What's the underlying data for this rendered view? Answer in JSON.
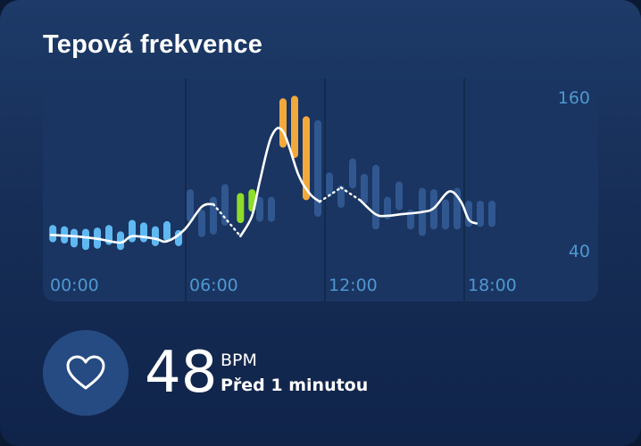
{
  "card": {
    "title": "Tepová frekvence"
  },
  "current": {
    "value": "48",
    "unit": "BPM",
    "time": "Před 1 minutou",
    "icon": "heart-icon"
  },
  "colors": {
    "low": "#5fb8f2",
    "normal": "#30578f",
    "elevated": "#8fdc2b",
    "high": "#f2a93c",
    "line": "#ffffff",
    "axis_text": "#4f97d1"
  },
  "chart_data": {
    "type": "line",
    "title": "",
    "xlabel": "",
    "ylabel": "",
    "x_ticks": [
      "00:00",
      "06:00",
      "12:00",
      "18:00"
    ],
    "y_ticks": [
      "160",
      "40"
    ],
    "ylim": [
      40,
      160
    ],
    "xlim": [
      "00:00",
      "24:00"
    ],
    "grid": "vertical",
    "series": [
      {
        "points": [
          {
            "t": "00:00",
            "v": 53
          },
          {
            "t": "01:00",
            "v": 52
          },
          {
            "t": "02:00",
            "v": 50
          },
          {
            "t": "03:00",
            "v": 47
          },
          {
            "t": "03:30",
            "v": 52
          },
          {
            "t": "04:30",
            "v": 50
          },
          {
            "t": "05:00",
            "v": 48
          },
          {
            "t": "05:45",
            "v": 57
          },
          {
            "t": "06:30",
            "v": 75
          },
          {
            "t": "07:00",
            "v": 77
          }
        ]
      },
      {
        "points": [
          {
            "t": "08:10",
            "v": 52
          },
          {
            "t": "08:40",
            "v": 68
          },
          {
            "t": "09:00",
            "v": 95
          },
          {
            "t": "09:30",
            "v": 130
          },
          {
            "t": "10:00",
            "v": 134
          },
          {
            "t": "10:40",
            "v": 100
          },
          {
            "t": "11:10",
            "v": 85
          },
          {
            "t": "11:35",
            "v": 79
          }
        ]
      },
      {
        "points": [
          {
            "t": "13:20",
            "v": 80
          },
          {
            "t": "14:00",
            "v": 69
          },
          {
            "t": "14:30",
            "v": 68
          },
          {
            "t": "15:00",
            "v": 69
          },
          {
            "t": "16:00",
            "v": 71
          },
          {
            "t": "16:30",
            "v": 74
          },
          {
            "t": "17:10",
            "v": 87
          },
          {
            "t": "17:40",
            "v": 79
          },
          {
            "t": "18:00",
            "v": 65
          },
          {
            "t": "18:20",
            "v": 62
          }
        ]
      }
    ],
    "gaps": [
      {
        "from": "07:00",
        "to": "08:10"
      },
      {
        "from": "11:35",
        "to": "12:30"
      },
      {
        "from": "12:30",
        "to": "13:20"
      }
    ],
    "gap_peak": {
      "t": "12:30",
      "v": 90
    },
    "ranges": [
      {
        "zone": "low",
        "t": "00:05",
        "min": 50,
        "max": 58
      },
      {
        "zone": "low",
        "t": "00:35",
        "min": 49,
        "max": 57
      },
      {
        "zone": "low",
        "t": "01:00",
        "min": 46,
        "max": 55
      },
      {
        "zone": "low",
        "t": "01:30",
        "min": 44,
        "max": 55
      },
      {
        "zone": "low",
        "t": "02:00",
        "min": 45,
        "max": 56
      },
      {
        "zone": "low",
        "t": "02:30",
        "min": 48,
        "max": 58
      },
      {
        "zone": "low",
        "t": "03:00",
        "min": 44,
        "max": 53
      },
      {
        "zone": "low",
        "t": "03:30",
        "min": 50,
        "max": 62
      },
      {
        "zone": "low",
        "t": "04:00",
        "min": 50,
        "max": 60
      },
      {
        "zone": "low",
        "t": "04:30",
        "min": 47,
        "max": 57
      },
      {
        "zone": "low",
        "t": "05:00",
        "min": 51,
        "max": 61
      },
      {
        "zone": "low",
        "t": "05:30",
        "min": 47,
        "max": 54
      },
      {
        "zone": "normal",
        "t": "06:00",
        "min": 66,
        "max": 86
      },
      {
        "zone": "normal",
        "t": "06:30",
        "min": 54,
        "max": 70
      },
      {
        "zone": "normal",
        "t": "07:00",
        "min": 56,
        "max": 80
      },
      {
        "zone": "normal",
        "t": "07:30",
        "min": 63,
        "max": 90
      },
      {
        "zone": "elevated",
        "t": "08:10",
        "min": 65,
        "max": 83
      },
      {
        "zone": "elevated",
        "t": "08:40",
        "min": 74,
        "max": 86
      },
      {
        "zone": "normal",
        "t": "09:00",
        "min": 66,
        "max": 80
      },
      {
        "zone": "normal",
        "t": "09:30",
        "min": 66,
        "max": 80
      },
      {
        "zone": "high",
        "t": "10:00",
        "min": 124,
        "max": 157
      },
      {
        "zone": "high",
        "t": "10:30",
        "min": 116,
        "max": 159
      },
      {
        "zone": "high",
        "t": "11:00",
        "min": 83,
        "max": 143
      },
      {
        "zone": "normal",
        "t": "11:30",
        "min": 70,
        "max": 140
      },
      {
        "zone": "normal",
        "t": "12:00",
        "min": 86,
        "max": 99
      },
      {
        "zone": "normal",
        "t": "12:30",
        "min": 77,
        "max": 89
      },
      {
        "zone": "normal",
        "t": "13:00",
        "min": 92,
        "max": 110
      },
      {
        "zone": "normal",
        "t": "13:30",
        "min": 80,
        "max": 98
      },
      {
        "zone": "normal",
        "t": "14:00",
        "min": 60,
        "max": 105
      },
      {
        "zone": "normal",
        "t": "14:30",
        "min": 68,
        "max": 80
      },
      {
        "zone": "normal",
        "t": "15:00",
        "min": 75,
        "max": 92
      },
      {
        "zone": "normal",
        "t": "15:30",
        "min": 60,
        "max": 70
      },
      {
        "zone": "normal",
        "t": "16:00",
        "min": 55,
        "max": 87
      },
      {
        "zone": "normal",
        "t": "16:30",
        "min": 60,
        "max": 86
      },
      {
        "zone": "normal",
        "t": "17:00",
        "min": 60,
        "max": 78
      },
      {
        "zone": "normal",
        "t": "17:30",
        "min": 60,
        "max": 87
      },
      {
        "zone": "normal",
        "t": "18:00",
        "min": 62,
        "max": 77
      },
      {
        "zone": "normal",
        "t": "18:30",
        "min": 62,
        "max": 77
      },
      {
        "zone": "normal",
        "t": "19:00",
        "min": 62,
        "max": 77
      }
    ]
  }
}
